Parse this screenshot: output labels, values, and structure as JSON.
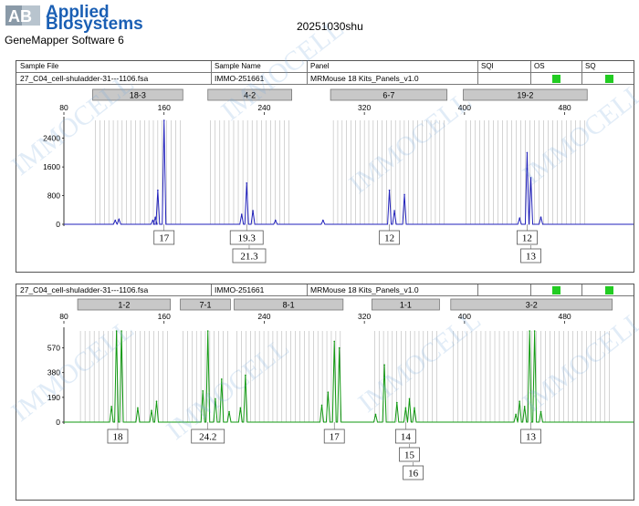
{
  "header": {
    "brand_line1": "Applied",
    "brand_line2": "Biosystems",
    "logo_letters": "AB",
    "software": "GeneMapper Software 6",
    "title": "20251030shu"
  },
  "table_headers": [
    "Sample File",
    "Sample Name",
    "Panel",
    "SQI",
    "OS",
    "SQ"
  ],
  "watermark": "IMMOCELL",
  "colors": {
    "blue_trace": "#2222bb",
    "green_trace": "#119911",
    "status_green": "#22cc22",
    "bin_bar": "#c8c8c8",
    "bin_line": "#aaaaaa"
  },
  "chart_data": [
    {
      "type": "line",
      "sample_file": "27_C04_cell-shuladder-31---1106.fsa",
      "sample_name": "IMMO-251661",
      "panel": "MRMouse 18 Kits_Panels_v1.0",
      "color": "#2222bb",
      "x_ticks": [
        80,
        160,
        240,
        320,
        400,
        480
      ],
      "y_ticks": [
        0,
        800,
        1600,
        2400
      ],
      "xlim": [
        80,
        535
      ],
      "ylim": [
        0,
        2900
      ],
      "marker_bins": [
        {
          "label": "18-3",
          "start": 103,
          "end": 175
        },
        {
          "label": "4-2",
          "start": 195,
          "end": 262
        },
        {
          "label": "6-7",
          "start": 293,
          "end": 386
        },
        {
          "label": "19-2",
          "start": 399,
          "end": 498
        }
      ],
      "peaks": [
        {
          "x": 121,
          "y": 110
        },
        {
          "x": 124,
          "y": 140
        },
        {
          "x": 153,
          "y": 190
        },
        {
          "x": 151,
          "y": 110
        },
        {
          "x": 155,
          "y": 950
        },
        {
          "x": 160,
          "y": 2900
        },
        {
          "x": 222,
          "y": 280
        },
        {
          "x": 226,
          "y": 1150
        },
        {
          "x": 231,
          "y": 380
        },
        {
          "x": 249,
          "y": 110
        },
        {
          "x": 287,
          "y": 110
        },
        {
          "x": 340,
          "y": 950
        },
        {
          "x": 344,
          "y": 380
        },
        {
          "x": 352,
          "y": 830
        },
        {
          "x": 444,
          "y": 170
        },
        {
          "x": 450,
          "y": 2000
        },
        {
          "x": 453,
          "y": 1300
        },
        {
          "x": 461,
          "y": 200
        }
      ],
      "allele_calls": [
        {
          "label": "17",
          "x": 160,
          "row": 0
        },
        {
          "label": "19.3",
          "x": 226,
          "row": 0
        },
        {
          "label": "21.3",
          "x": 228,
          "row": 1
        },
        {
          "label": "12",
          "x": 340,
          "row": 0
        },
        {
          "label": "12",
          "x": 450,
          "row": 0
        },
        {
          "label": "13",
          "x": 453,
          "row": 1
        }
      ]
    },
    {
      "type": "line",
      "sample_file": "27_C04_cell-shuladder-31---1106.fsa",
      "sample_name": "IMMO-251661",
      "panel": "MRMouse 18 Kits_Panels_v1.0",
      "color": "#119911",
      "x_ticks": [
        80,
        160,
        240,
        320,
        400,
        480
      ],
      "y_ticks": [
        0,
        190,
        380,
        570
      ],
      "xlim": [
        80,
        535
      ],
      "ylim": [
        0,
        700
      ],
      "marker_bins": [
        {
          "label": "1-2",
          "start": 91,
          "end": 165
        },
        {
          "label": "7-1",
          "start": 173,
          "end": 213
        },
        {
          "label": "8-1",
          "start": 216,
          "end": 303
        },
        {
          "label": "1-1",
          "start": 326,
          "end": 380
        },
        {
          "label": "3-2",
          "start": 389,
          "end": 518
        }
      ],
      "peaks": [
        {
          "x": 118,
          "y": 120
        },
        {
          "x": 122,
          "y": 700
        },
        {
          "x": 126,
          "y": 700
        },
        {
          "x": 139,
          "y": 110
        },
        {
          "x": 150,
          "y": 90
        },
        {
          "x": 154,
          "y": 160
        },
        {
          "x": 191,
          "y": 240
        },
        {
          "x": 195,
          "y": 700
        },
        {
          "x": 201,
          "y": 180
        },
        {
          "x": 206,
          "y": 330
        },
        {
          "x": 212,
          "y": 80
        },
        {
          "x": 221,
          "y": 110
        },
        {
          "x": 225,
          "y": 360
        },
        {
          "x": 286,
          "y": 130
        },
        {
          "x": 291,
          "y": 230
        },
        {
          "x": 296,
          "y": 620
        },
        {
          "x": 300,
          "y": 570
        },
        {
          "x": 329,
          "y": 60
        },
        {
          "x": 336,
          "y": 440
        },
        {
          "x": 346,
          "y": 150
        },
        {
          "x": 353,
          "y": 110
        },
        {
          "x": 356,
          "y": 180
        },
        {
          "x": 360,
          "y": 110
        },
        {
          "x": 441,
          "y": 60
        },
        {
          "x": 444,
          "y": 160
        },
        {
          "x": 448,
          "y": 120
        },
        {
          "x": 452,
          "y": 700
        },
        {
          "x": 456,
          "y": 700
        },
        {
          "x": 461,
          "y": 80
        }
      ],
      "allele_calls": [
        {
          "label": "18",
          "x": 123,
          "row": 0
        },
        {
          "label": "24.2",
          "x": 195,
          "row": 0
        },
        {
          "label": "17",
          "x": 296,
          "row": 0
        },
        {
          "label": "14",
          "x": 353,
          "row": 0
        },
        {
          "label": "15",
          "x": 356,
          "row": 1
        },
        {
          "label": "16",
          "x": 359,
          "row": 2
        },
        {
          "label": "13",
          "x": 453,
          "row": 0
        }
      ]
    }
  ]
}
